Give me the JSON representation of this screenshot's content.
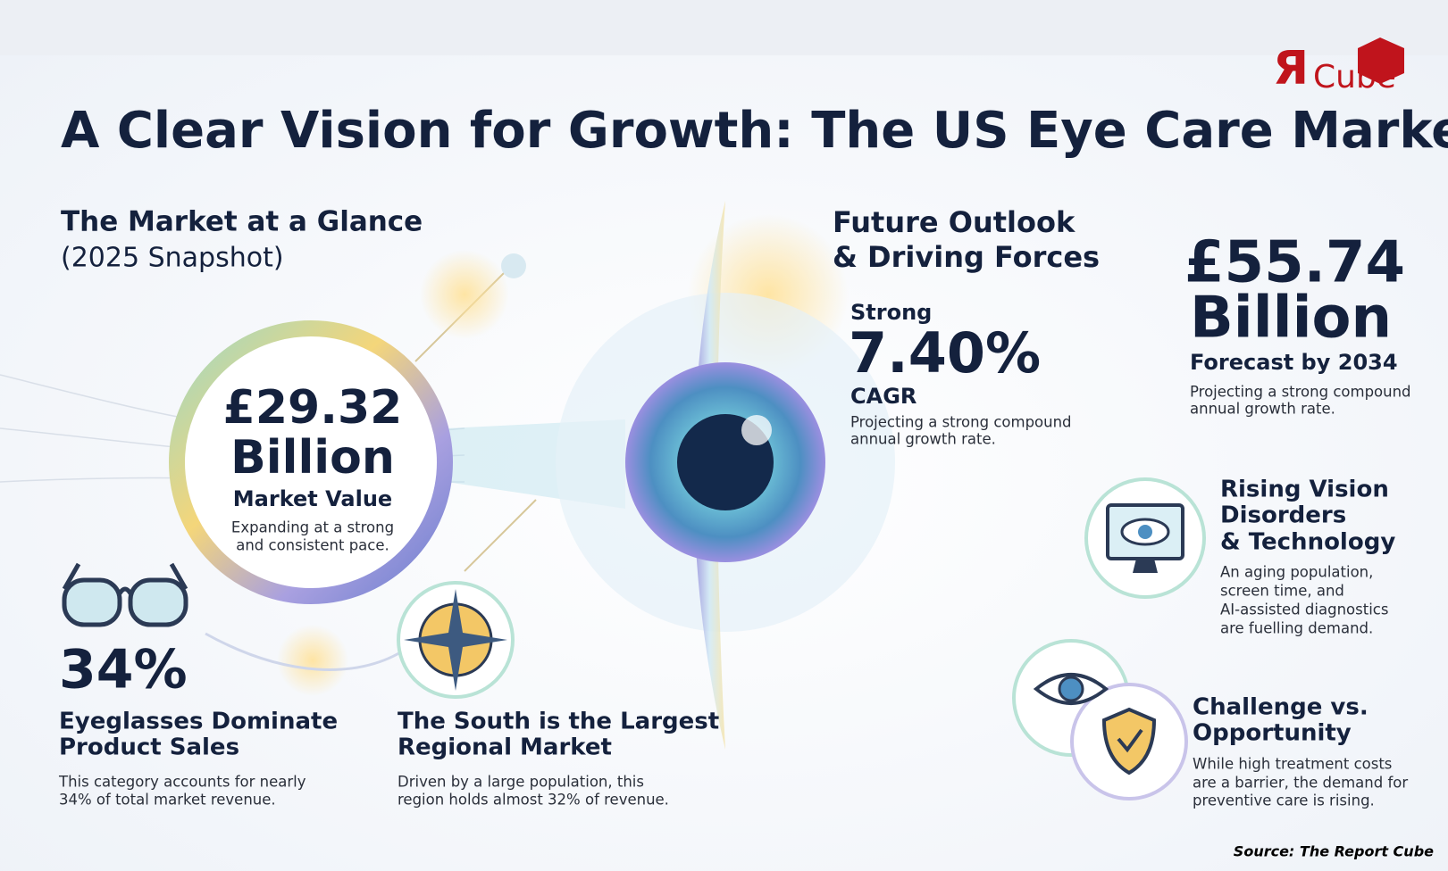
{
  "logo": {
    "mark": "Я",
    "text": "Cube"
  },
  "title": "A Clear Vision for Growth: The US Eye Care Market",
  "glance": {
    "heading": "The Market at a Glance",
    "subheading": "(2025 Snapshot)"
  },
  "market_value": {
    "amount": "£29.32",
    "unit": "Billion",
    "label": "Market Value",
    "description": [
      "Expanding at a strong",
      "and consistent pace."
    ]
  },
  "eyeglasses": {
    "stat": "34%",
    "title": [
      "Eyeglasses Dominate",
      "Product Sales"
    ],
    "description": [
      "This category accounts for nearly",
      "34% of total market revenue."
    ]
  },
  "south": {
    "title": [
      "The South is the Largest",
      "Regional Market"
    ],
    "description": [
      "Driven by a large population, this",
      "region holds almost 32% of revenue."
    ]
  },
  "outlook": {
    "heading": [
      "Future Outlook",
      "& Driving Forces"
    ]
  },
  "cagr": {
    "prefix": "Strong",
    "stat": "7.40%",
    "label": "CAGR",
    "description": [
      "Projecting a strong compound",
      "annual growth rate."
    ]
  },
  "forecast": {
    "amount": "£55.74",
    "unit": "Billion",
    "label": "Forecast by 2034",
    "description": [
      "Projecting a strong compound",
      "annual growth rate."
    ]
  },
  "rising": {
    "title": [
      "Rising Vision",
      "Disorders",
      "& Technology"
    ],
    "description": [
      "An aging population,",
      "screen time, and",
      "AI-assisted diagnostics",
      "are fuelling demand."
    ]
  },
  "challenge": {
    "title": [
      "Challenge vs.",
      "Opportunity"
    ],
    "description": [
      "While high treatment costs",
      "are a barrier, the demand for",
      "preventive care is rising."
    ]
  },
  "source": "Source: The Report Cube"
}
